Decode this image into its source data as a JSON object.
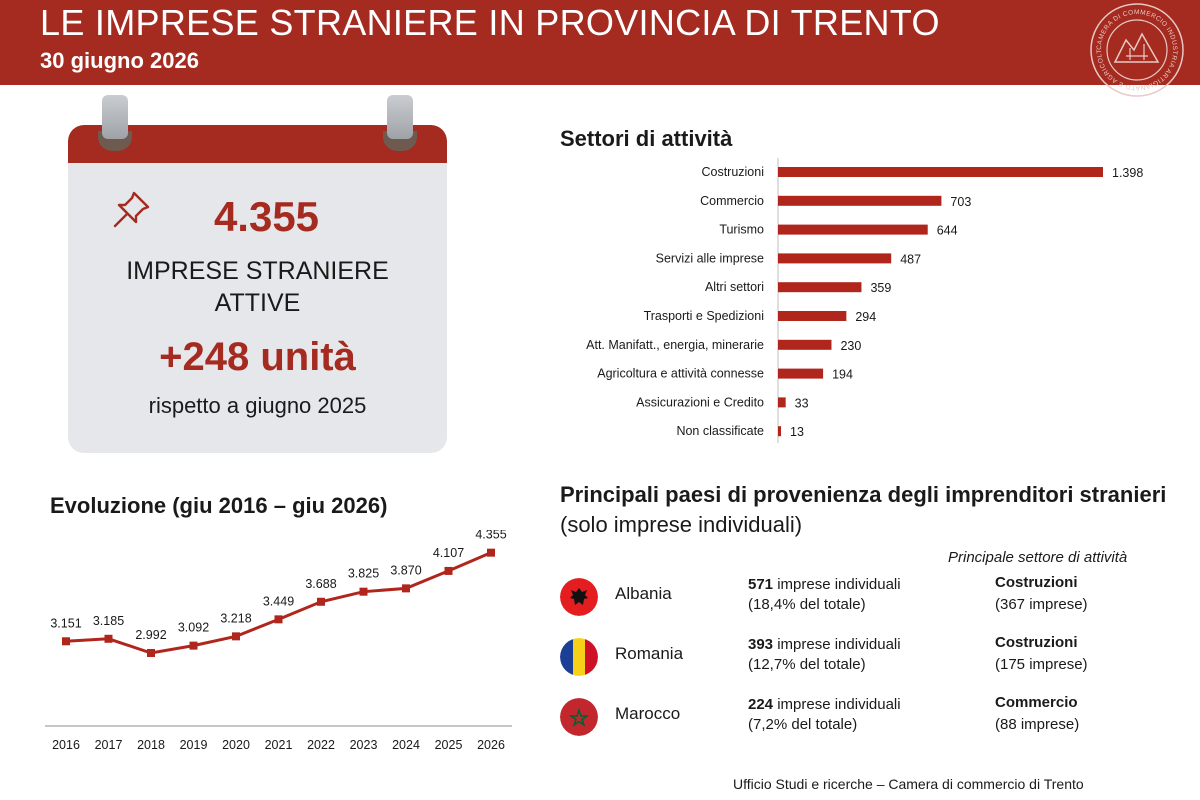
{
  "header": {
    "title": "LE IMPRESE STRANIERE IN PROVINCIA DI TRENTO",
    "date": "30 giugno 2026",
    "logo_text": "CAMERA DI COMMERCIO INDUSTRIA ARTIGIANATO E AGRICOLTURA TRENTO"
  },
  "colors": {
    "accent": "#a52a20",
    "card": "#e6e7ea",
    "line": "#b0261c"
  },
  "calendar": {
    "icon": "pushpin-icon",
    "count": "4.355",
    "line1": "IMPRESE STRANIERE",
    "line2": "ATTIVE",
    "delta": "+248 unità",
    "note": "rispetto a giugno 2025"
  },
  "sectors_title": "Settori di attività",
  "evolution_title": "Evoluzione (giu 2016 – giu 2026)",
  "chart_data": [
    {
      "type": "bar",
      "orientation": "horizontal",
      "title": "Settori di attività",
      "categories": [
        "Costruzioni",
        "Commercio",
        "Turismo",
        "Servizi alle imprese",
        "Altri settori",
        "Trasporti e Spedizioni",
        "Att. Manifatt., energia, minerarie",
        "Agricoltura e attività connesse",
        "Assicurazioni e Credito",
        "Non classificate"
      ],
      "values": [
        1398,
        703,
        644,
        487,
        359,
        294,
        230,
        194,
        33,
        13
      ],
      "labels": [
        "1.398",
        "703",
        "644",
        "487",
        "359",
        "294",
        "230",
        "194",
        "33",
        "13"
      ],
      "xlim": [
        0,
        1398
      ],
      "grid": false
    },
    {
      "type": "line",
      "title": "Evoluzione (giu 2016 – giu 2026)",
      "x": [
        "2016",
        "2017",
        "2018",
        "2019",
        "2020",
        "2021",
        "2022",
        "2023",
        "2024",
        "2025",
        "2026"
      ],
      "values": [
        3151,
        3185,
        2992,
        3092,
        3218,
        3449,
        3688,
        3825,
        3870,
        4107,
        4355
      ],
      "labels": [
        "3.151",
        "3.185",
        "2.992",
        "3.092",
        "3.218",
        "3.449",
        "3.688",
        "3.825",
        "3.870",
        "4.107",
        "4.355"
      ],
      "ylim": [
        2000,
        4500
      ],
      "grid": false
    }
  ],
  "countries": {
    "title_bold": "Principali paesi di provenienza degli imprenditori stranieri",
    "title_rest": " (solo imprese individuali)",
    "sector_header": "Principale settore di attività",
    "rows": [
      {
        "name": "Albania",
        "flag": "albania-flag-icon",
        "count": "571",
        "count_label": " imprese individuali",
        "share": "(18,4% del totale)",
        "sector": "Costruzioni",
        "sector_count": "(367 imprese)"
      },
      {
        "name": "Romania",
        "flag": "romania-flag-icon",
        "count": "393",
        "count_label": " imprese individuali",
        "share": "(12,7% del totale)",
        "sector": "Costruzioni",
        "sector_count": "(175 imprese)"
      },
      {
        "name": "Marocco",
        "flag": "morocco-flag-icon",
        "count": "224",
        "count_label": " imprese individuali",
        "share": "(7,2% del totale)",
        "sector": "Commercio",
        "sector_count": "(88 imprese)"
      }
    ]
  },
  "footer": "Ufficio Studi e ricerche – Camera di commercio di Trento"
}
